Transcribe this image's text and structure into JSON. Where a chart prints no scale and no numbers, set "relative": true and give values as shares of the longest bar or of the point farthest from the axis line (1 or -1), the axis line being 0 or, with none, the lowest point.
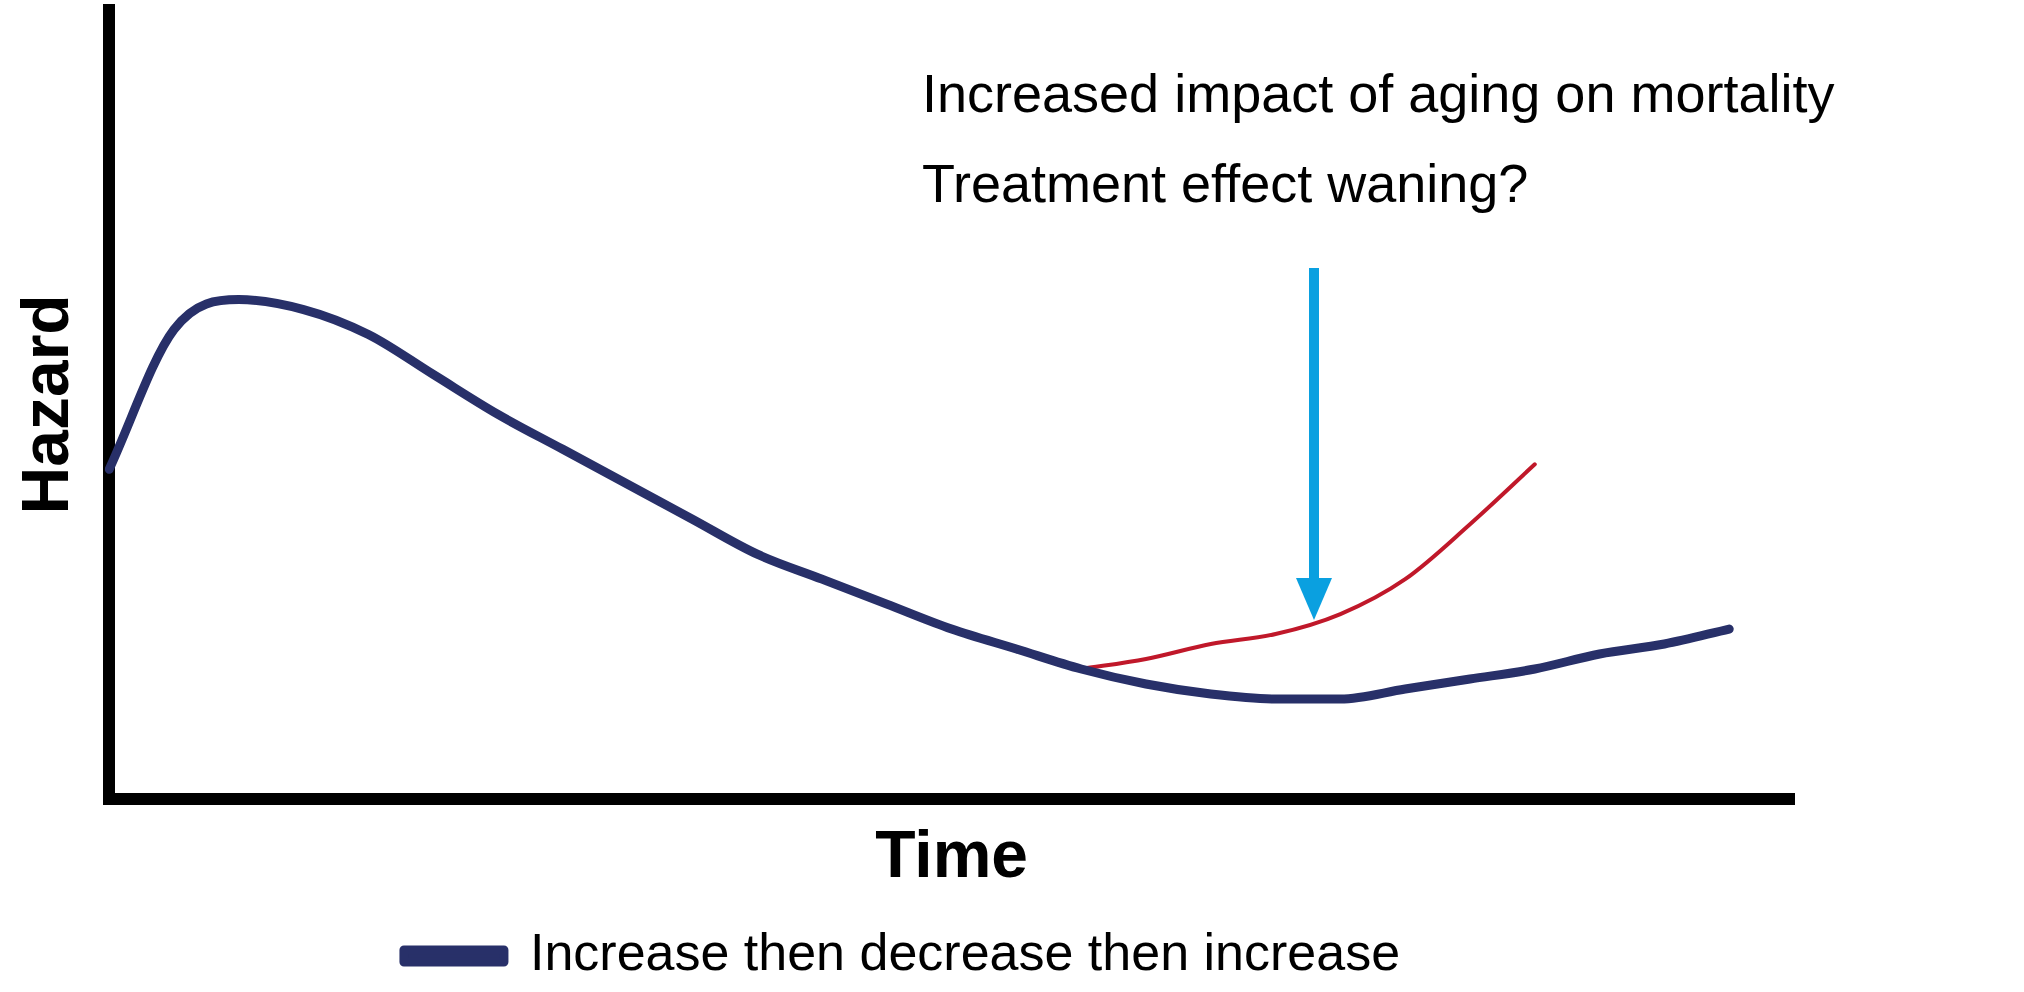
{
  "chart_data": {
    "type": "line",
    "relative": true,
    "xlabel": "Time",
    "ylabel": "Hazard",
    "tick_labels": false,
    "grid": false,
    "legend": "bottom",
    "marker": "none",
    "line_style": "solid",
    "annotations": [
      "Increased impact of aging on mortality",
      "Treatment effect waning?"
    ],
    "categories": [
      null,
      null,
      null,
      null,
      null,
      null,
      null,
      null,
      null,
      null,
      null,
      null,
      null,
      null,
      null,
      null,
      null,
      null,
      null,
      null,
      null,
      null,
      null,
      null,
      null,
      null,
      null
    ],
    "series": [
      {
        "name": "Increase then decrease then increase",
        "color": "#283069",
        "values": [
          0.66,
          0.94,
          1.0,
          0.98,
          0.93,
          0.85,
          0.77,
          0.7,
          0.63,
          0.56,
          0.49,
          0.44,
          0.39,
          0.34,
          0.3,
          0.26,
          0.23,
          0.21,
          0.2,
          0.2,
          0.22,
          0.24,
          0.26,
          0.29,
          0.31,
          0.34,
          null
        ]
      },
      {
        "color": "#c0182a",
        "values": [
          null,
          null,
          null,
          null,
          null,
          null,
          null,
          null,
          null,
          null,
          null,
          null,
          null,
          null,
          null,
          0.26,
          0.28,
          0.31,
          0.33,
          0.37,
          0.44,
          0.55,
          0.67,
          null,
          null,
          null,
          null
        ]
      }
    ]
  }
}
